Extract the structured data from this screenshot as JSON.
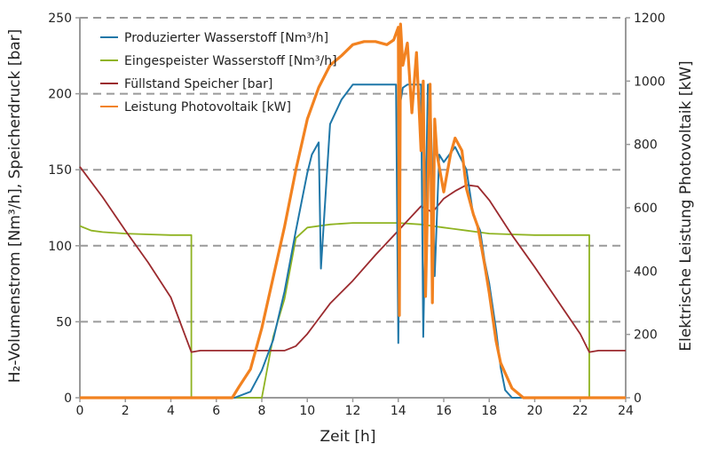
{
  "chart_data": {
    "type": "line",
    "xlabel": "Zeit [h]",
    "ylabel_left": "H₂-Volumenstrom [Nm³/h], Speicherdruck [bar]",
    "ylabel_right": "Elektrische Leistung Photovoltaik [kW]",
    "xlim": [
      0,
      24
    ],
    "ylim_left": [
      0,
      250
    ],
    "ylim_right": [
      0,
      1200
    ],
    "x_ticks": [
      "0",
      "2",
      "4",
      "6",
      "8",
      "10",
      "12",
      "14",
      "16",
      "18",
      "20",
      "22",
      "24"
    ],
    "y_ticks_left": [
      "0",
      "50",
      "100",
      "150",
      "200",
      "250"
    ],
    "y_ticks_right": [
      "0",
      "200",
      "400",
      "600",
      "800",
      "1000",
      "1200"
    ],
    "grid": "horizontal dashed",
    "legend_position": "top-left",
    "series": [
      {
        "name": "Produzierter Wasserstoff [Nm³/h]",
        "color": "#1f77a8",
        "axis": "left",
        "x": [
          0,
          6.8,
          7.5,
          8.0,
          8.5,
          9.0,
          9.5,
          10.0,
          10.2,
          10.5,
          10.6,
          11.0,
          11.5,
          12.0,
          12.5,
          13.0,
          13.5,
          13.9,
          14.0,
          14.1,
          14.2,
          14.4,
          14.6,
          15.0,
          15.1,
          15.3,
          15.4,
          15.6,
          15.8,
          16.0,
          16.5,
          17.0,
          17.3,
          17.6,
          17.8,
          18.0,
          18.3,
          18.5,
          18.7,
          19.0,
          24
        ],
        "y": [
          0,
          0,
          4,
          18,
          38,
          70,
          110,
          148,
          160,
          168,
          85,
          180,
          196,
          206,
          206,
          206,
          206,
          206,
          36,
          195,
          204,
          206,
          206,
          206,
          40,
          206,
          206,
          80,
          160,
          155,
          165,
          150,
          120,
          110,
          90,
          75,
          45,
          20,
          5,
          0,
          0
        ]
      },
      {
        "name": "Eingespeister Wasserstoff [Nm³/h]",
        "color": "#8fb321",
        "axis": "left",
        "x": [
          0,
          0.5,
          1,
          2,
          3,
          4,
          4.9,
          4.9,
          8.0,
          8.1,
          8.5,
          9.0,
          9.5,
          10,
          11,
          12,
          13,
          14,
          15,
          16,
          16.5,
          17,
          17.5,
          18,
          19,
          20,
          21,
          22,
          22.4,
          22.4,
          24
        ],
        "y": [
          113,
          110,
          109,
          108,
          107.5,
          107,
          107,
          0,
          0,
          8,
          40,
          65,
          105,
          112,
          114,
          115,
          115,
          115,
          114,
          112,
          111,
          110,
          109,
          108,
          107.5,
          107,
          107,
          107,
          107,
          0,
          0
        ]
      },
      {
        "name": "Füllstand Speicher [bar]",
        "color": "#9b2a2e",
        "axis": "left",
        "x": [
          0,
          1,
          2,
          3,
          4,
          4.9,
          5.3,
          6,
          7,
          8,
          9,
          9.5,
          10,
          10.5,
          11,
          12,
          13,
          14,
          15,
          15.5,
          16,
          16.5,
          17,
          17.5,
          18,
          19,
          20,
          21,
          22,
          22.4,
          22.8,
          24
        ],
        "y": [
          152,
          132,
          110,
          89,
          66,
          30,
          31,
          31,
          31,
          31,
          31,
          34,
          42,
          52,
          62,
          77,
          94,
          110,
          126,
          122,
          131,
          136,
          140,
          139,
          130,
          107,
          86,
          64,
          42,
          30,
          31,
          31
        ]
      },
      {
        "name": "Leistung Photovoltaik [kW]",
        "color": "#f28220",
        "axis": "right",
        "x": [
          0,
          6.7,
          7.0,
          7.5,
          8.0,
          8.5,
          9.0,
          9.5,
          10.0,
          10.5,
          11.0,
          11.5,
          12.0,
          12.5,
          13.0,
          13.5,
          13.8,
          14.0,
          14.05,
          14.1,
          14.2,
          14.4,
          14.6,
          14.8,
          15.0,
          15.1,
          15.2,
          15.4,
          15.5,
          15.6,
          15.7,
          16.0,
          16.3,
          16.5,
          16.8,
          17.0,
          17.3,
          17.5,
          17.8,
          18.0,
          18.3,
          18.5,
          19.0,
          19.5,
          24
        ],
        "y": [
          0,
          0,
          35,
          90,
          220,
          380,
          540,
          720,
          880,
          980,
          1050,
          1080,
          1115,
          1125,
          1125,
          1115,
          1130,
          1170,
          260,
          1180,
          1050,
          1120,
          900,
          1090,
          780,
          1000,
          320,
          990,
          300,
          880,
          770,
          650,
          770,
          820,
          780,
          660,
          580,
          540,
          420,
          330,
          180,
          110,
          30,
          0,
          0
        ]
      }
    ]
  }
}
